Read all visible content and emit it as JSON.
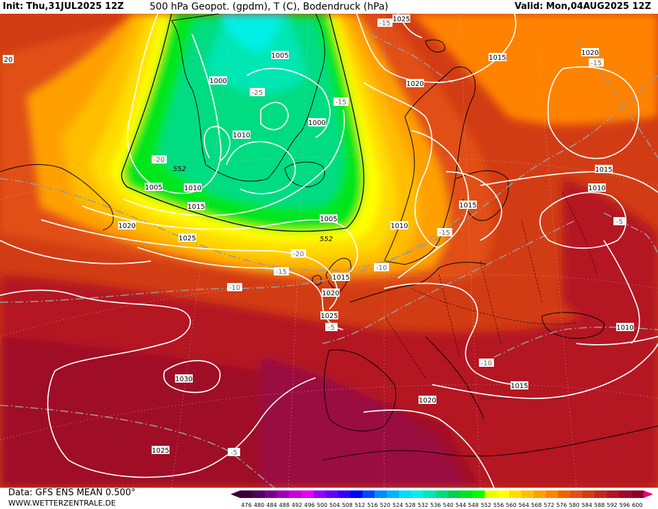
{
  "header": {
    "init_label": "Init:",
    "init_value": "Thu,31JUL2025 12Z",
    "title": "500 hPa Geopot. (gpdm), T (C), Bodendruck (hPa)",
    "valid_label": "Valid:",
    "valid_value": "Mon,04AUG2025 12Z"
  },
  "footer": {
    "data_source": "Data: GFS ENS MEAN 0.500°",
    "website": "WWW.WETTERZENTRALE.DE"
  },
  "colorbar": {
    "ticks": [
      "476",
      "480",
      "484",
      "488",
      "492",
      "496",
      "500",
      "504",
      "508",
      "512",
      "516",
      "520",
      "524",
      "528",
      "532",
      "536",
      "540",
      "544",
      "548",
      "552",
      "556",
      "560",
      "564",
      "568",
      "572",
      "576",
      "580",
      "584",
      "588",
      "592",
      "596",
      "600"
    ],
    "colors": [
      "#3a003a",
      "#55005a",
      "#78008c",
      "#a000b4",
      "#c800dc",
      "#e600f0",
      "#9600ff",
      "#6400ff",
      "#3200ff",
      "#0000ff",
      "#0046ff",
      "#008cff",
      "#00b4ff",
      "#00dcff",
      "#00f0e6",
      "#00e6b4",
      "#00dc82",
      "#00d250",
      "#00e61e",
      "#00ff00",
      "#e6ff00",
      "#ffff00",
      "#ffdc00",
      "#ffbe00",
      "#ffa000",
      "#ff8200",
      "#f06400",
      "#e15014",
      "#d23c14",
      "#c3281e",
      "#b41423",
      "#a00a28",
      "#8c0028"
    ],
    "unit_note": "gpdm"
  },
  "map": {
    "pressure_labels": [
      {
        "text": "1025",
        "kind": "isobar"
      },
      {
        "text": "1015",
        "kind": "isobar"
      },
      {
        "text": "1020",
        "kind": "isobar"
      },
      {
        "text": "1020",
        "kind": "isobar"
      },
      {
        "text": "1005",
        "kind": "isobar"
      },
      {
        "text": "1000",
        "kind": "isobar"
      },
      {
        "text": "1010",
        "kind": "isobar"
      },
      {
        "text": "1000",
        "kind": "isobar"
      },
      {
        "text": "1005",
        "kind": "isobar"
      },
      {
        "text": "1010",
        "kind": "isobar"
      },
      {
        "text": "1015",
        "kind": "isobar"
      },
      {
        "text": "1020",
        "kind": "isobar"
      },
      {
        "text": "1025",
        "kind": "isobar"
      },
      {
        "text": "1005",
        "kind": "isobar"
      },
      {
        "text": "1010",
        "kind": "isobar"
      },
      {
        "text": "1015",
        "kind": "isobar"
      },
      {
        "text": "1015",
        "kind": "isobar"
      },
      {
        "text": "1015",
        "kind": "isobar"
      },
      {
        "text": "1010",
        "kind": "isobar"
      },
      {
        "text": "1020",
        "kind": "isobar"
      },
      {
        "text": "1025",
        "kind": "isobar"
      },
      {
        "text": "1030",
        "kind": "isobar"
      },
      {
        "text": "1020",
        "kind": "isobar"
      },
      {
        "text": "1025",
        "kind": "isobar"
      },
      {
        "text": "1015",
        "kind": "isobar"
      },
      {
        "text": "1010",
        "kind": "isobar"
      },
      {
        "text": "1015",
        "kind": "isobar"
      },
      {
        "text": "1010",
        "kind": "isobar"
      },
      {
        "text": "20",
        "kind": "isobar"
      }
    ],
    "temp_labels": [
      "-15",
      "-15",
      "-25",
      "-15",
      "-20",
      "-20",
      "-15",
      "-10",
      "-10",
      "-15",
      "-5",
      "-5",
      "-10",
      "-5"
    ],
    "geopot_labels": [
      "552",
      "552"
    ]
  }
}
